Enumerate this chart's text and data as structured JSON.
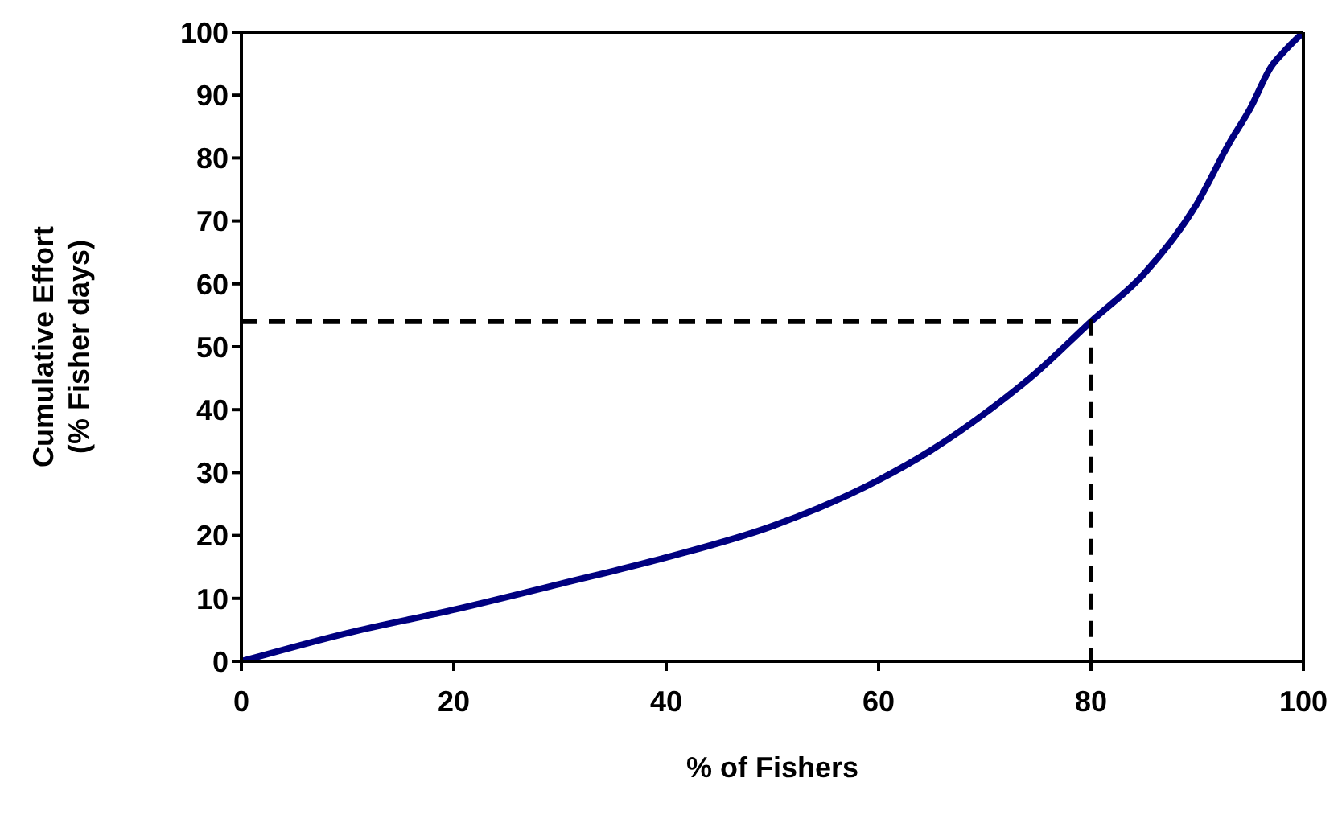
{
  "chart_data": {
    "type": "line",
    "xlabel": "% of Fishers",
    "ylabel": "Cumulative Effort\n(% Fisher days)",
    "xlim": [
      0,
      100
    ],
    "ylim": [
      0,
      100
    ],
    "xticks": [
      0,
      20,
      40,
      60,
      80,
      100
    ],
    "yticks": [
      0,
      10,
      20,
      30,
      40,
      50,
      60,
      70,
      80,
      90,
      100
    ],
    "marker": "none",
    "series": [
      {
        "color": "#000080",
        "line_style": "solid",
        "x": [
          0,
          10,
          20,
          30,
          40,
          50,
          60,
          65,
          70,
          75,
          80,
          85,
          90,
          93,
          95,
          97,
          98,
          100
        ],
        "values": [
          0,
          4.5,
          8.2,
          12.3,
          16.5,
          21.5,
          28.8,
          33.6,
          39.4,
          46.1,
          54,
          61.6,
          72.8,
          82.3,
          87.9,
          94.6,
          96.6,
          100
        ]
      },
      {
        "color": "#000000",
        "line_style": "dashed",
        "x": [
          0,
          80,
          80
        ],
        "values": [
          54,
          54,
          0
        ]
      }
    ]
  }
}
